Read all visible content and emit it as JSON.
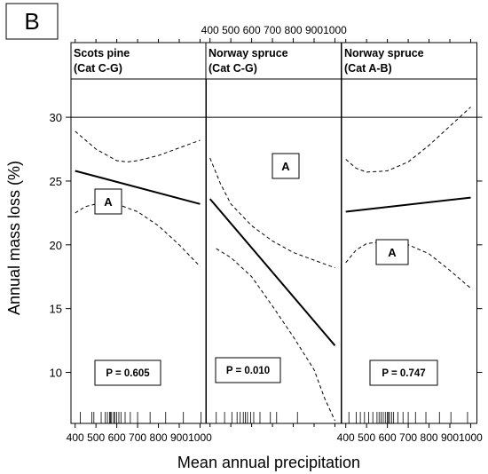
{
  "panel_label": "B",
  "chart_data": {
    "type": "line",
    "xlabel": "Mean annual precipitation",
    "ylabel": "Annual mass loss (%)",
    "xlim": [
      380,
      1030
    ],
    "ylim": [
      6,
      33
    ],
    "x_ticks": [
      400,
      500,
      600,
      700,
      800,
      900,
      1000
    ],
    "x_tick_labels": [
      "400",
      "500",
      "600",
      "700",
      "800",
      "900",
      "1000"
    ],
    "y_ticks": [
      10,
      15,
      20,
      25,
      30
    ],
    "y_tick_labels": [
      "10",
      "15",
      "20",
      "25",
      "30"
    ],
    "grid": false,
    "reference_line_y": 30,
    "panels": [
      {
        "strip": [
          "Scots pine",
          "(Cat C-G)"
        ],
        "group_label": "A",
        "p_value": "P = 0.605",
        "fit": {
          "x": [
            400,
            1000
          ],
          "y": [
            25.8,
            23.2
          ]
        },
        "ci_upper": {
          "x": [
            400,
            500,
            600,
            650,
            700,
            800,
            900,
            1000
          ],
          "y": [
            28.9,
            27.5,
            26.6,
            26.5,
            26.6,
            27.0,
            27.6,
            28.2
          ]
        },
        "ci_lower": {
          "x": [
            400,
            450,
            500,
            600,
            700,
            800,
            900,
            1000
          ],
          "y": [
            22.5,
            23.0,
            23.2,
            23.2,
            22.6,
            21.5,
            20.0,
            18.3
          ]
        },
        "rug_x": [
          425,
          480,
          490,
          525,
          545,
          555,
          565,
          570,
          575,
          585,
          590,
          600,
          610,
          620,
          640,
          665,
          700,
          760,
          835,
          920,
          1005
        ]
      },
      {
        "strip": [
          "Norway spruce",
          "(Cat C-G)"
        ],
        "group_label": "A",
        "p_value": "P = 0.010",
        "fit": {
          "x": [
            400,
            1000
          ],
          "y": [
            23.6,
            12.1
          ]
        },
        "ci_upper": {
          "x": [
            400,
            450,
            500,
            600,
            700,
            800,
            900,
            1000
          ],
          "y": [
            26.8,
            24.8,
            23.2,
            21.5,
            20.3,
            19.4,
            18.8,
            18.2
          ]
        },
        "ci_lower": {
          "x": [
            430,
            500,
            600,
            700,
            800,
            900,
            950,
            1000
          ],
          "y": [
            19.7,
            19.0,
            17.5,
            15.2,
            12.8,
            10.2,
            8.0,
            6.2
          ]
        },
        "rug_x": [
          430,
          470,
          505,
          530,
          545,
          560,
          570,
          580,
          595,
          610,
          640,
          690,
          720,
          820
        ]
      },
      {
        "strip": [
          "Norway spruce",
          "(Cat A-B)"
        ],
        "group_label": "A",
        "p_value": "P = 0.747",
        "fit": {
          "x": [
            400,
            1000
          ],
          "y": [
            22.6,
            23.7
          ]
        },
        "ci_upper": {
          "x": [
            400,
            450,
            500,
            600,
            700,
            800,
            900,
            1000
          ],
          "y": [
            26.7,
            26.0,
            25.7,
            25.8,
            26.5,
            27.8,
            29.3,
            30.8
          ]
        },
        "ci_lower": {
          "x": [
            400,
            450,
            500,
            600,
            650,
            700,
            800,
            900,
            1000
          ],
          "y": [
            18.6,
            19.6,
            20.1,
            20.3,
            20.2,
            20.0,
            19.3,
            18.0,
            16.6
          ]
        },
        "rug_x": [
          415,
          450,
          470,
          490,
          510,
          530,
          550,
          560,
          570,
          580,
          590,
          600,
          605,
          610,
          620,
          630,
          650,
          675,
          700,
          735,
          785,
          850,
          905,
          985
        ]
      }
    ]
  }
}
